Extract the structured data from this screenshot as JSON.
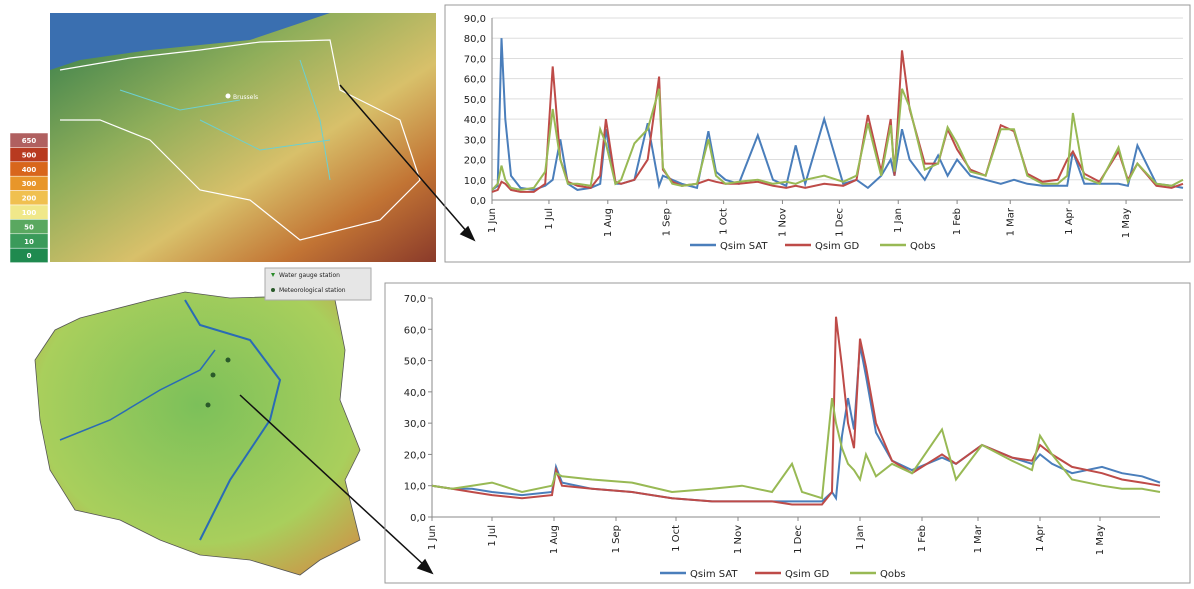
{
  "maps": {
    "top": {
      "city": "Brussels",
      "legend": [
        "650",
        "500",
        "400",
        "300",
        "200",
        "100",
        "50",
        "10",
        "0"
      ]
    },
    "bottom": {
      "legend": [
        "Water gauge station",
        "Meteorological station"
      ]
    }
  },
  "chart_data": [
    {
      "type": "line",
      "x": [
        0,
        3,
        5,
        7,
        10,
        15,
        22,
        28,
        32,
        36,
        40,
        45,
        52,
        57,
        60,
        65,
        68,
        75,
        82,
        88,
        90,
        95,
        100,
        108,
        114,
        118,
        123,
        130,
        140,
        148,
        155,
        160,
        165,
        175,
        185,
        192,
        198,
        205,
        210,
        212,
        216,
        220,
        228,
        235,
        240,
        245,
        252,
        260,
        268,
        275,
        282,
        290,
        298,
        303,
        306,
        312,
        320,
        330,
        335,
        340,
        350,
        358,
        364
      ],
      "xlim": [
        0,
        364
      ],
      "xticks": [
        {
          "value": 0,
          "label": "1 Jun"
        },
        {
          "value": 30,
          "label": "1 Jul"
        },
        {
          "value": 61,
          "label": "1 Aug"
        },
        {
          "value": 92,
          "label": "1 Sep"
        },
        {
          "value": 122,
          "label": "1 Oct"
        },
        {
          "value": 153,
          "label": "1 Nov"
        },
        {
          "value": 183,
          "label": "1 Dec"
        },
        {
          "value": 214,
          "label": "1 Jan"
        },
        {
          "value": 245,
          "label": "1 Feb"
        },
        {
          "value": 273,
          "label": "1 Mar"
        },
        {
          "value": 304,
          "label": "1 Apr"
        },
        {
          "value": 334,
          "label": "1 May"
        }
      ],
      "ylim": [
        0,
        90
      ],
      "yticks": [
        {
          "value": 0,
          "label": "0,0"
        },
        {
          "value": 10,
          "label": "10,0"
        },
        {
          "value": 20,
          "label": "20,0"
        },
        {
          "value": 30,
          "label": "30,0"
        },
        {
          "value": 40,
          "label": "40,0"
        },
        {
          "value": 50,
          "label": "50,0"
        },
        {
          "value": 60,
          "label": "60,0"
        },
        {
          "value": 70,
          "label": "70,0"
        },
        {
          "value": 80,
          "label": "80,0"
        },
        {
          "value": 90,
          "label": "90,0"
        }
      ],
      "grid": true,
      "series": [
        {
          "name": "Qsim SAT",
          "color": "#4a7ebb",
          "values": [
            5,
            7,
            80,
            40,
            12,
            6,
            5,
            7,
            10,
            30,
            8,
            5,
            6,
            8,
            35,
            8,
            8,
            10,
            38,
            7,
            12,
            10,
            8,
            6,
            34,
            14,
            10,
            8,
            32,
            10,
            7,
            27,
            8,
            40,
            8,
            10,
            6,
            12,
            20,
            12,
            35,
            20,
            10,
            22,
            12,
            20,
            12,
            10,
            8,
            10,
            8,
            7,
            7,
            7,
            24,
            8,
            8,
            8,
            7,
            27,
            8,
            7,
            6
          ]
        },
        {
          "name": "Qsim GD",
          "color": "#be4b48",
          "values": [
            4,
            5,
            9,
            8,
            5,
            4,
            4,
            8,
            66,
            20,
            9,
            7,
            6,
            12,
            40,
            9,
            8,
            10,
            20,
            61,
            15,
            9,
            7,
            8,
            10,
            9,
            8,
            8,
            9,
            7,
            6,
            7,
            6,
            8,
            7,
            10,
            42,
            14,
            40,
            12,
            74,
            45,
            18,
            18,
            35,
            25,
            15,
            12,
            37,
            34,
            13,
            9,
            10,
            20,
            24,
            13,
            9,
            24,
            10,
            18,
            7,
            6,
            8
          ]
        },
        {
          "name": "Qobs",
          "color": "#98b954",
          "values": [
            5,
            8,
            17,
            10,
            6,
            5,
            6,
            14,
            45,
            20,
            8,
            8,
            7,
            35,
            28,
            8,
            10,
            28,
            35,
            55,
            16,
            8,
            7,
            8,
            30,
            12,
            8,
            9,
            10,
            8,
            9,
            8,
            10,
            12,
            9,
            12,
            38,
            12,
            37,
            14,
            55,
            46,
            15,
            18,
            36,
            28,
            14,
            12,
            35,
            35,
            12,
            8,
            8,
            12,
            43,
            11,
            8,
            26,
            9,
            18,
            8,
            7,
            10
          ]
        }
      ]
    },
    {
      "type": "line",
      "x": [
        0,
        10,
        20,
        30,
        45,
        60,
        62,
        65,
        80,
        100,
        120,
        140,
        155,
        170,
        180,
        185,
        195,
        200,
        202,
        205,
        208,
        211,
        214,
        217,
        222,
        230,
        240,
        255,
        262,
        275,
        290,
        300,
        304,
        310,
        320,
        335,
        345,
        355,
        364
      ],
      "xlim": [
        0,
        364
      ],
      "xticks": [
        {
          "value": 0,
          "label": "1 Jun"
        },
        {
          "value": 30,
          "label": "1 Jul"
        },
        {
          "value": 61,
          "label": "1 Aug"
        },
        {
          "value": 92,
          "label": "1 Sep"
        },
        {
          "value": 122,
          "label": "1 Oct"
        },
        {
          "value": 153,
          "label": "1 Nov"
        },
        {
          "value": 183,
          "label": "1 Dec"
        },
        {
          "value": 214,
          "label": "1 Jan"
        },
        {
          "value": 245,
          "label": "1 Feb"
        },
        {
          "value": 273,
          "label": "1 Mar"
        },
        {
          "value": 304,
          "label": "1 Apr"
        },
        {
          "value": 334,
          "label": "1 May"
        }
      ],
      "ylim": [
        0,
        70
      ],
      "yticks": [
        {
          "value": 0,
          "label": "0,0"
        },
        {
          "value": 10,
          "label": "10,0"
        },
        {
          "value": 20,
          "label": "20,0"
        },
        {
          "value": 30,
          "label": "30,0"
        },
        {
          "value": 40,
          "label": "40,0"
        },
        {
          "value": 50,
          "label": "50,0"
        },
        {
          "value": 60,
          "label": "60,0"
        },
        {
          "value": 70,
          "label": "70,0"
        }
      ],
      "grid": false,
      "series": [
        {
          "name": "Qsim SAT",
          "color": "#4a7ebb",
          "values": [
            10,
            9,
            9,
            8,
            7,
            8,
            16,
            11,
            9,
            8,
            6,
            5,
            5,
            5,
            5,
            5,
            5,
            8,
            6,
            26,
            38,
            28,
            55,
            45,
            27,
            18,
            15,
            19,
            17,
            23,
            19,
            17,
            20,
            17,
            14,
            16,
            14,
            13,
            11
          ]
        },
        {
          "name": "Qsim GD",
          "color": "#be4b48",
          "values": [
            10,
            9,
            8,
            7,
            6,
            7,
            15,
            10,
            9,
            8,
            6,
            5,
            5,
            5,
            4,
            4,
            4,
            8,
            64,
            48,
            30,
            22,
            57,
            48,
            30,
            18,
            14,
            20,
            17,
            23,
            19,
            18,
            23,
            20,
            16,
            14,
            12,
            11,
            10
          ]
        },
        {
          "name": "Qobs",
          "color": "#98b954",
          "values": [
            10,
            9,
            10,
            11,
            8,
            10,
            14,
            13,
            12,
            11,
            8,
            9,
            10,
            8,
            17,
            8,
            6,
            38,
            30,
            22,
            17,
            15,
            12,
            20,
            13,
            17,
            14,
            28,
            12,
            23,
            18,
            15,
            26,
            20,
            12,
            10,
            9,
            9,
            8
          ]
        }
      ]
    }
  ]
}
